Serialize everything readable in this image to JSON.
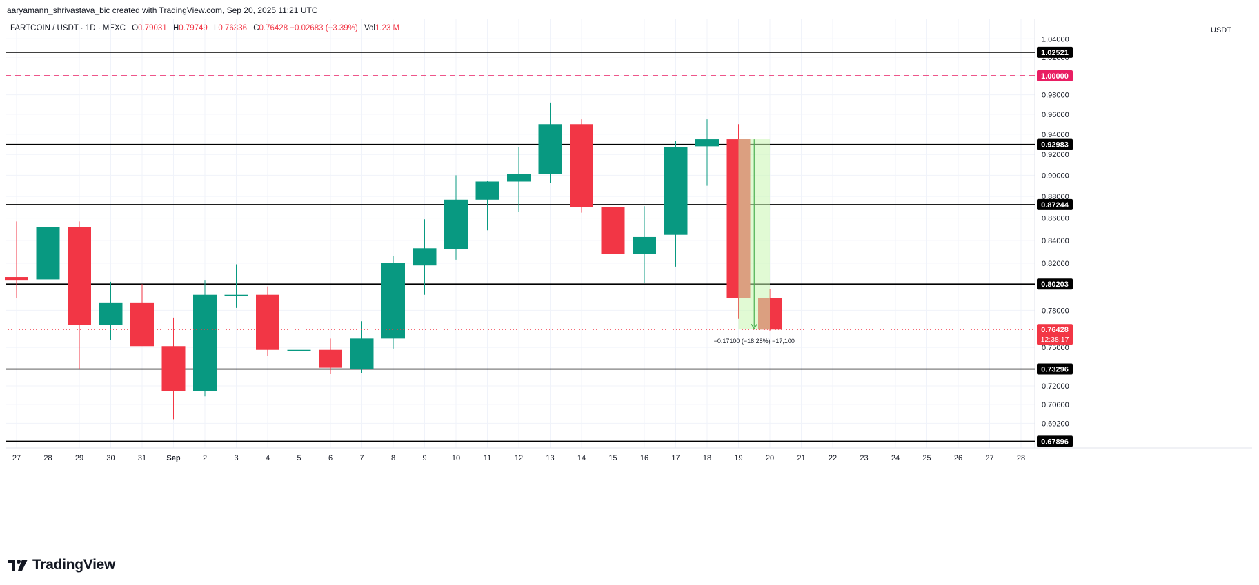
{
  "header": {
    "credit": "aaryamann_shrivastava_bic created with TradingView.com, Sep 20, 2025 11:21 UTC",
    "symbol": "FARTCOIN / USDT · 1D · MEXC",
    "o_label": "O",
    "o_value": "0.79031",
    "h_label": "H",
    "h_value": "0.79749",
    "l_label": "L",
    "l_value": "0.76336",
    "c_label": "C",
    "c_value": "0.76428 −0.02683 (−3.39%)",
    "vol_label": "Vol",
    "vol_value": "1.23 M"
  },
  "price_axis": {
    "unit": "USDT"
  },
  "logo": {
    "text": "TradingView"
  },
  "colors": {
    "up": "#089981",
    "down": "#f23645",
    "level": "#000000",
    "target": "#e91e63",
    "measure_fill": "#c8f5b0",
    "measure_stroke": "#4caf50"
  },
  "chart_data": {
    "type": "candlestick",
    "x_tick_labels": [
      "27",
      "28",
      "29",
      "30",
      "31",
      "Sep",
      "2",
      "3",
      "4",
      "5",
      "6",
      "7",
      "8",
      "9",
      "10",
      "11",
      "12",
      "13",
      "14",
      "15",
      "16",
      "17",
      "18",
      "19",
      "20",
      "21",
      "22",
      "23",
      "24",
      "25",
      "26",
      "27",
      "28"
    ],
    "y_tick_labels": [
      1.04,
      1.02,
      1.0,
      0.98,
      0.96,
      0.94,
      0.92,
      0.9,
      0.88,
      0.86,
      0.84,
      0.82,
      0.78,
      0.75,
      0.72,
      0.706,
      0.692
    ],
    "y_scale": "log",
    "candles": [
      {
        "date": "27",
        "o": 0.808,
        "h": 0.857,
        "l": 0.79,
        "c": 0.805
      },
      {
        "date": "28",
        "o": 0.806,
        "h": 0.857,
        "l": 0.794,
        "c": 0.852
      },
      {
        "date": "29",
        "o": 0.852,
        "h": 0.857,
        "l": 0.733,
        "c": 0.768
      },
      {
        "date": "30",
        "o": 0.768,
        "h": 0.804,
        "l": 0.756,
        "c": 0.786
      },
      {
        "date": "31",
        "o": 0.786,
        "h": 0.802,
        "l": 0.752,
        "c": 0.751
      },
      {
        "date": "Sep",
        "o": 0.751,
        "h": 0.774,
        "l": 0.695,
        "c": 0.716
      },
      {
        "date": "2",
        "o": 0.716,
        "h": 0.805,
        "l": 0.712,
        "c": 0.793
      },
      {
        "date": "3",
        "o": 0.793,
        "h": 0.819,
        "l": 0.782,
        "c": 0.793
      },
      {
        "date": "4",
        "o": 0.793,
        "h": 0.8,
        "l": 0.743,
        "c": 0.748
      },
      {
        "date": "5",
        "o": 0.748,
        "h": 0.779,
        "l": 0.729,
        "c": 0.748
      },
      {
        "date": "6",
        "o": 0.748,
        "h": 0.757,
        "l": 0.729,
        "c": 0.734
      },
      {
        "date": "7",
        "o": 0.733,
        "h": 0.771,
        "l": 0.73,
        "c": 0.757
      },
      {
        "date": "8",
        "o": 0.757,
        "h": 0.826,
        "l": 0.749,
        "c": 0.82
      },
      {
        "date": "9",
        "o": 0.818,
        "h": 0.859,
        "l": 0.793,
        "c": 0.833
      },
      {
        "date": "10",
        "o": 0.832,
        "h": 0.9,
        "l": 0.823,
        "c": 0.877
      },
      {
        "date": "11",
        "o": 0.877,
        "h": 0.895,
        "l": 0.849,
        "c": 0.894
      },
      {
        "date": "12",
        "o": 0.894,
        "h": 0.927,
        "l": 0.866,
        "c": 0.901
      },
      {
        "date": "13",
        "o": 0.901,
        "h": 0.972,
        "l": 0.893,
        "c": 0.95
      },
      {
        "date": "14",
        "o": 0.95,
        "h": 0.955,
        "l": 0.865,
        "c": 0.87
      },
      {
        "date": "15",
        "o": 0.87,
        "h": 0.899,
        "l": 0.796,
        "c": 0.828
      },
      {
        "date": "16",
        "o": 0.828,
        "h": 0.871,
        "l": 0.803,
        "c": 0.843
      },
      {
        "date": "17",
        "o": 0.845,
        "h": 0.933,
        "l": 0.817,
        "c": 0.927
      },
      {
        "date": "18",
        "o": 0.928,
        "h": 0.955,
        "l": 0.89,
        "c": 0.935
      },
      {
        "date": "19",
        "o": 0.935,
        "h": 0.95,
        "l": 0.773,
        "c": 0.79
      },
      {
        "date": "20",
        "o": 0.79031,
        "h": 0.79749,
        "l": 0.76336,
        "c": 0.76428
      }
    ],
    "horizontal_levels": [
      {
        "value": 1.02521,
        "label": "1.02521",
        "style": "solid",
        "color": "#000000"
      },
      {
        "value": 1.0,
        "label": "1.00000",
        "style": "dashed",
        "color": "#e91e63"
      },
      {
        "value": 0.92983,
        "label": "0.92983",
        "style": "solid",
        "color": "#000000"
      },
      {
        "value": 0.87244,
        "label": "0.87244",
        "style": "solid",
        "color": "#000000"
      },
      {
        "value": 0.80203,
        "label": "0.80203",
        "style": "solid",
        "color": "#000000"
      },
      {
        "value": 0.73296,
        "label": "0.73296",
        "style": "solid",
        "color": "#000000"
      },
      {
        "value": 0.67896,
        "label": "0.67896",
        "style": "solid",
        "color": "#000000"
      }
    ],
    "current_price": {
      "value": 0.76428,
      "label": "0.76428",
      "countdown": "12:38:17"
    },
    "measure": {
      "from_date": "19",
      "to_date": "20",
      "top": 0.935,
      "bottom": 0.76428,
      "label": "−0.17100 (−18.28%) −17,100"
    }
  }
}
